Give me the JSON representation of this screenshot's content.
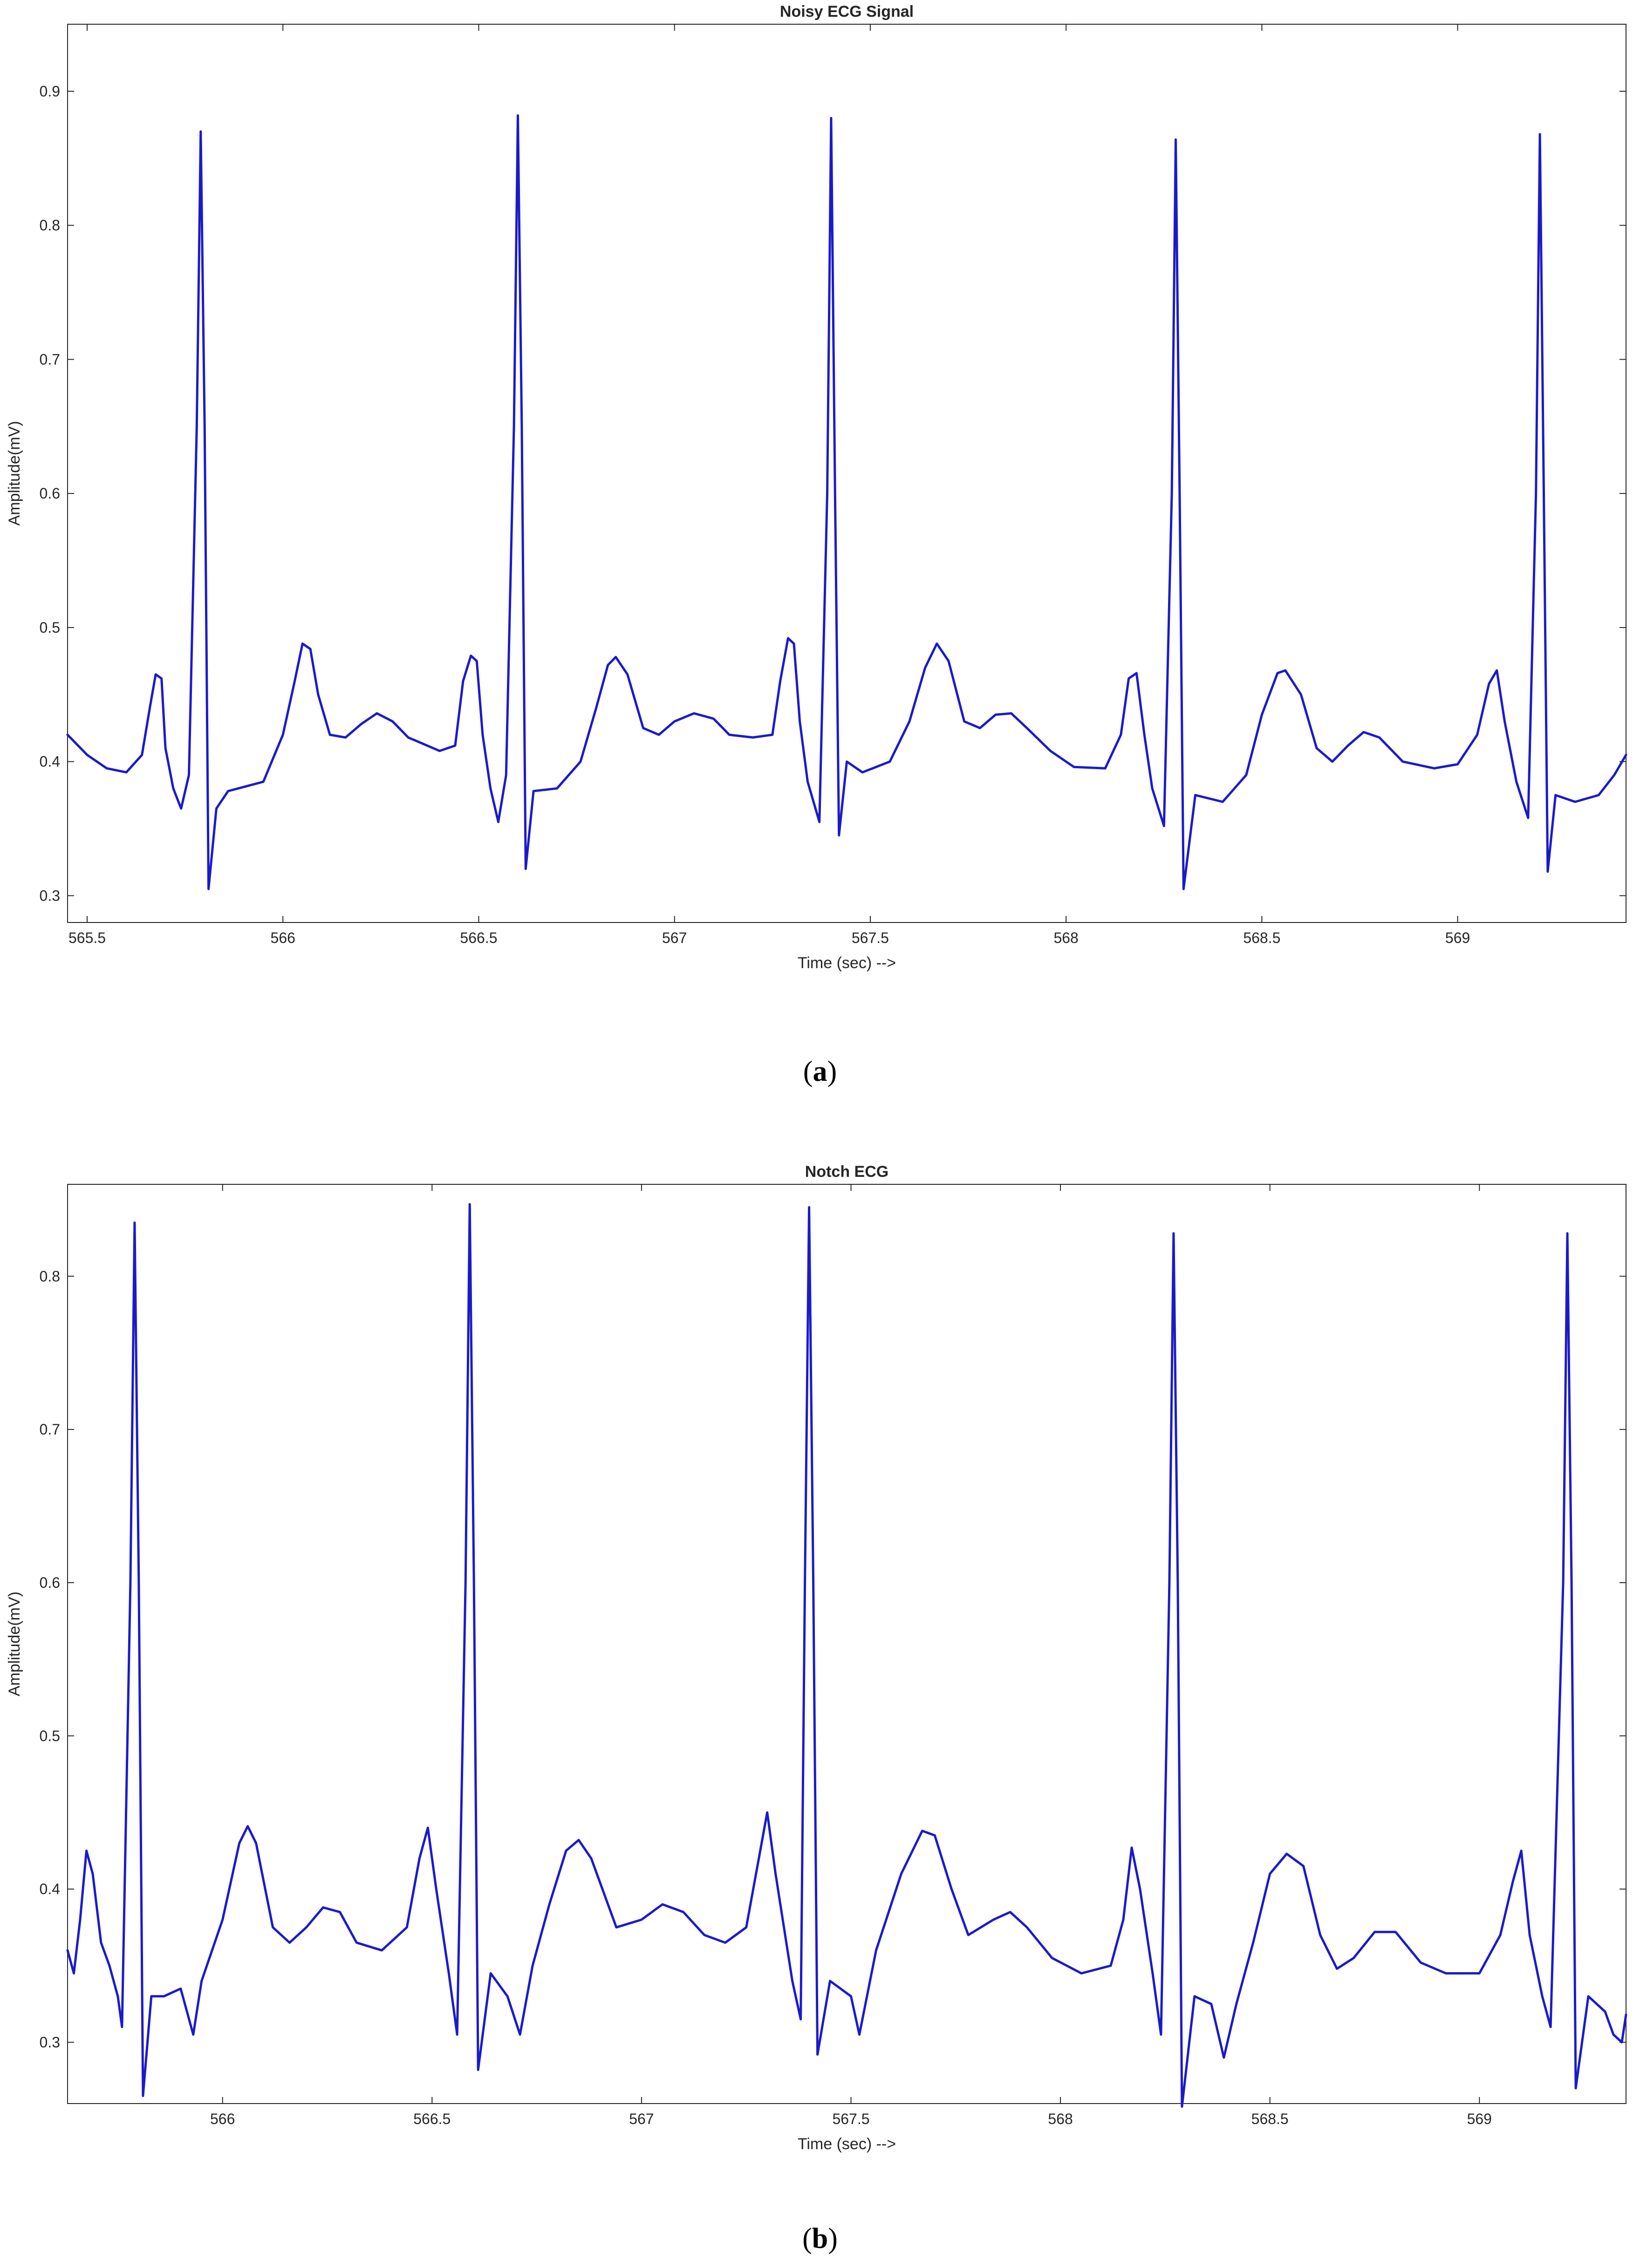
{
  "chart_data": [
    {
      "type": "line",
      "title": "Noisy ECG Signal",
      "xlabel": "Time (sec) -->",
      "ylabel": "Amplitude(mV)",
      "xlim": [
        565.45,
        569.43
      ],
      "ylim": [
        0.28,
        0.95
      ],
      "x_ticks": [
        565.5,
        566,
        566.5,
        567,
        567.5,
        568,
        568.5,
        569
      ],
      "x_tick_labels": [
        "565.5",
        "566",
        "566.5",
        "567",
        "567.5",
        "568",
        "568.5",
        "569"
      ],
      "y_ticks": [
        0.3,
        0.4,
        0.5,
        0.6,
        0.7,
        0.8,
        0.9
      ],
      "y_tick_labels": [
        "0.3",
        "0.4",
        "0.5",
        "0.6",
        "0.7",
        "0.8",
        "0.9"
      ],
      "grid": false,
      "color": "#1a1acc",
      "series": [
        {
          "values": [
            [
              565.45,
              0.42
            ],
            [
              565.5,
              0.405
            ],
            [
              565.55,
              0.395
            ],
            [
              565.6,
              0.392
            ],
            [
              565.64,
              0.405
            ],
            [
              565.66,
              0.44
            ],
            [
              565.675,
              0.465
            ],
            [
              565.69,
              0.462
            ],
            [
              565.7,
              0.41
            ],
            [
              565.72,
              0.38
            ],
            [
              565.74,
              0.365
            ],
            [
              565.76,
              0.39
            ],
            [
              565.78,
              0.65
            ],
            [
              565.79,
              0.87
            ],
            [
              565.8,
              0.65
            ],
            [
              565.81,
              0.305
            ],
            [
              565.83,
              0.365
            ],
            [
              565.86,
              0.378
            ],
            [
              565.95,
              0.385
            ],
            [
              566.0,
              0.42
            ],
            [
              566.03,
              0.46
            ],
            [
              566.05,
              0.488
            ],
            [
              566.07,
              0.484
            ],
            [
              566.09,
              0.45
            ],
            [
              566.12,
              0.42
            ],
            [
              566.16,
              0.418
            ],
            [
              566.2,
              0.428
            ],
            [
              566.24,
              0.436
            ],
            [
              566.28,
              0.43
            ],
            [
              566.32,
              0.418
            ],
            [
              566.4,
              0.408
            ],
            [
              566.44,
              0.412
            ],
            [
              566.46,
              0.46
            ],
            [
              566.48,
              0.479
            ],
            [
              566.495,
              0.475
            ],
            [
              566.51,
              0.42
            ],
            [
              566.53,
              0.38
            ],
            [
              566.55,
              0.355
            ],
            [
              566.57,
              0.39
            ],
            [
              566.59,
              0.65
            ],
            [
              566.6,
              0.882
            ],
            [
              566.61,
              0.65
            ],
            [
              566.62,
              0.32
            ],
            [
              566.64,
              0.378
            ],
            [
              566.7,
              0.38
            ],
            [
              566.76,
              0.4
            ],
            [
              566.8,
              0.44
            ],
            [
              566.83,
              0.472
            ],
            [
              566.85,
              0.478
            ],
            [
              566.88,
              0.465
            ],
            [
              566.92,
              0.425
            ],
            [
              566.96,
              0.42
            ],
            [
              567.0,
              0.43
            ],
            [
              567.05,
              0.436
            ],
            [
              567.1,
              0.432
            ],
            [
              567.14,
              0.42
            ],
            [
              567.2,
              0.418
            ],
            [
              567.25,
              0.42
            ],
            [
              567.27,
              0.46
            ],
            [
              567.29,
              0.492
            ],
            [
              567.305,
              0.488
            ],
            [
              567.32,
              0.43
            ],
            [
              567.34,
              0.385
            ],
            [
              567.37,
              0.355
            ],
            [
              567.39,
              0.6
            ],
            [
              567.4,
              0.88
            ],
            [
              567.41,
              0.6
            ],
            [
              567.42,
              0.345
            ],
            [
              567.44,
              0.4
            ],
            [
              567.48,
              0.392
            ],
            [
              567.55,
              0.4
            ],
            [
              567.6,
              0.43
            ],
            [
              567.64,
              0.47
            ],
            [
              567.67,
              0.488
            ],
            [
              567.7,
              0.475
            ],
            [
              567.74,
              0.43
            ],
            [
              567.78,
              0.425
            ],
            [
              567.82,
              0.435
            ],
            [
              567.86,
              0.436
            ],
            [
              567.9,
              0.425
            ],
            [
              567.96,
              0.408
            ],
            [
              568.02,
              0.396
            ],
            [
              568.1,
              0.395
            ],
            [
              568.14,
              0.42
            ],
            [
              568.16,
              0.462
            ],
            [
              568.18,
              0.466
            ],
            [
              568.2,
              0.42
            ],
            [
              568.22,
              0.38
            ],
            [
              568.25,
              0.352
            ],
            [
              568.27,
              0.6
            ],
            [
              568.28,
              0.864
            ],
            [
              568.29,
              0.6
            ],
            [
              568.3,
              0.305
            ],
            [
              568.33,
              0.375
            ],
            [
              568.4,
              0.37
            ],
            [
              568.46,
              0.39
            ],
            [
              568.5,
              0.435
            ],
            [
              568.54,
              0.466
            ],
            [
              568.56,
              0.468
            ],
            [
              568.6,
              0.45
            ],
            [
              568.64,
              0.41
            ],
            [
              568.68,
              0.4
            ],
            [
              568.72,
              0.412
            ],
            [
              568.76,
              0.422
            ],
            [
              568.8,
              0.418
            ],
            [
              568.86,
              0.4
            ],
            [
              568.94,
              0.395
            ],
            [
              569.0,
              0.398
            ],
            [
              569.05,
              0.42
            ],
            [
              569.08,
              0.458
            ],
            [
              569.1,
              0.468
            ],
            [
              569.12,
              0.43
            ],
            [
              569.15,
              0.385
            ],
            [
              569.18,
              0.358
            ],
            [
              569.2,
              0.6
            ],
            [
              569.21,
              0.868
            ],
            [
              569.22,
              0.6
            ],
            [
              569.23,
              0.318
            ],
            [
              569.25,
              0.375
            ],
            [
              569.3,
              0.37
            ],
            [
              569.36,
              0.375
            ],
            [
              569.4,
              0.39
            ],
            [
              569.43,
              0.405
            ]
          ]
        }
      ]
    },
    {
      "type": "line",
      "title": "Notch ECG",
      "xlabel": "Time (sec) -->",
      "ylabel": "Amplitude(mV)",
      "xlim": [
        565.63,
        569.35
      ],
      "ylim": [
        0.26,
        0.86
      ],
      "x_ticks": [
        566,
        566.5,
        567,
        567.5,
        568,
        568.5,
        569
      ],
      "x_tick_labels": [
        "566",
        "566.5",
        "567",
        "567.5",
        "568",
        "568.5",
        "569"
      ],
      "y_ticks": [
        0.3,
        0.4,
        0.5,
        0.6,
        0.7,
        0.8
      ],
      "y_tick_labels": [
        "0.3",
        "0.4",
        "0.5",
        "0.6",
        "0.7",
        "0.8"
      ],
      "grid": false,
      "color": "#1a1acc",
      "series": [
        {
          "values": [
            [
              565.63,
              0.36
            ],
            [
              565.645,
              0.345
            ],
            [
              565.66,
              0.38
            ],
            [
              565.675,
              0.425
            ],
            [
              565.69,
              0.41
            ],
            [
              565.71,
              0.365
            ],
            [
              565.73,
              0.35
            ],
            [
              565.75,
              0.33
            ],
            [
              565.76,
              0.31
            ],
            [
              565.78,
              0.6
            ],
            [
              565.79,
              0.835
            ],
            [
              565.8,
              0.6
            ],
            [
              565.81,
              0.265
            ],
            [
              565.83,
              0.33
            ],
            [
              565.86,
              0.33
            ],
            [
              565.9,
              0.335
            ],
            [
              565.93,
              0.305
            ],
            [
              565.95,
              0.34
            ],
            [
              566.0,
              0.38
            ],
            [
              566.04,
              0.43
            ],
            [
              566.06,
              0.441
            ],
            [
              566.08,
              0.43
            ],
            [
              566.12,
              0.375
            ],
            [
              566.16,
              0.365
            ],
            [
              566.2,
              0.375
            ],
            [
              566.24,
              0.388
            ],
            [
              566.28,
              0.385
            ],
            [
              566.32,
              0.365
            ],
            [
              566.38,
              0.36
            ],
            [
              566.44,
              0.375
            ],
            [
              566.47,
              0.42
            ],
            [
              566.49,
              0.44
            ],
            [
              566.51,
              0.4
            ],
            [
              566.54,
              0.345
            ],
            [
              566.56,
              0.305
            ],
            [
              566.58,
              0.6
            ],
            [
              566.59,
              0.847
            ],
            [
              566.6,
              0.6
            ],
            [
              566.61,
              0.282
            ],
            [
              566.64,
              0.345
            ],
            [
              566.68,
              0.33
            ],
            [
              566.71,
              0.305
            ],
            [
              566.74,
              0.35
            ],
            [
              566.78,
              0.39
            ],
            [
              566.82,
              0.425
            ],
            [
              566.85,
              0.432
            ],
            [
              566.88,
              0.42
            ],
            [
              566.94,
              0.375
            ],
            [
              567.0,
              0.38
            ],
            [
              567.05,
              0.39
            ],
            [
              567.1,
              0.385
            ],
            [
              567.15,
              0.37
            ],
            [
              567.2,
              0.365
            ],
            [
              567.25,
              0.375
            ],
            [
              567.28,
              0.42
            ],
            [
              567.3,
              0.45
            ],
            [
              567.32,
              0.41
            ],
            [
              567.36,
              0.34
            ],
            [
              567.38,
              0.315
            ],
            [
              567.39,
              0.6
            ],
            [
              567.4,
              0.845
            ],
            [
              567.41,
              0.6
            ],
            [
              567.42,
              0.292
            ],
            [
              567.45,
              0.34
            ],
            [
              567.5,
              0.33
            ],
            [
              567.52,
              0.305
            ],
            [
              567.56,
              0.36
            ],
            [
              567.62,
              0.41
            ],
            [
              567.67,
              0.438
            ],
            [
              567.7,
              0.435
            ],
            [
              567.74,
              0.4
            ],
            [
              567.78,
              0.37
            ],
            [
              567.84,
              0.38
            ],
            [
              567.88,
              0.385
            ],
            [
              567.92,
              0.375
            ],
            [
              567.98,
              0.355
            ],
            [
              568.05,
              0.345
            ],
            [
              568.12,
              0.35
            ],
            [
              568.15,
              0.38
            ],
            [
              568.17,
              0.427
            ],
            [
              568.19,
              0.4
            ],
            [
              568.22,
              0.345
            ],
            [
              568.24,
              0.305
            ],
            [
              568.26,
              0.6
            ],
            [
              568.27,
              0.828
            ],
            [
              568.28,
              0.6
            ],
            [
              568.29,
              0.258
            ],
            [
              568.32,
              0.33
            ],
            [
              568.36,
              0.325
            ],
            [
              568.39,
              0.29
            ],
            [
              568.42,
              0.325
            ],
            [
              568.46,
              0.365
            ],
            [
              568.5,
              0.41
            ],
            [
              568.54,
              0.423
            ],
            [
              568.58,
              0.415
            ],
            [
              568.62,
              0.37
            ],
            [
              568.66,
              0.348
            ],
            [
              568.7,
              0.355
            ],
            [
              568.75,
              0.372
            ],
            [
              568.8,
              0.372
            ],
            [
              568.86,
              0.352
            ],
            [
              568.92,
              0.345
            ],
            [
              569.0,
              0.345
            ],
            [
              569.05,
              0.37
            ],
            [
              569.08,
              0.405
            ],
            [
              569.1,
              0.425
            ],
            [
              569.12,
              0.37
            ],
            [
              569.15,
              0.33
            ],
            [
              569.17,
              0.31
            ],
            [
              569.2,
              0.6
            ],
            [
              569.21,
              0.828
            ],
            [
              569.22,
              0.6
            ],
            [
              569.23,
              0.27
            ],
            [
              569.26,
              0.33
            ],
            [
              569.3,
              0.32
            ],
            [
              569.32,
              0.305
            ],
            [
              569.34,
              0.3
            ],
            [
              569.35,
              0.318
            ]
          ]
        }
      ]
    }
  ],
  "captions": [
    "a",
    "b"
  ]
}
